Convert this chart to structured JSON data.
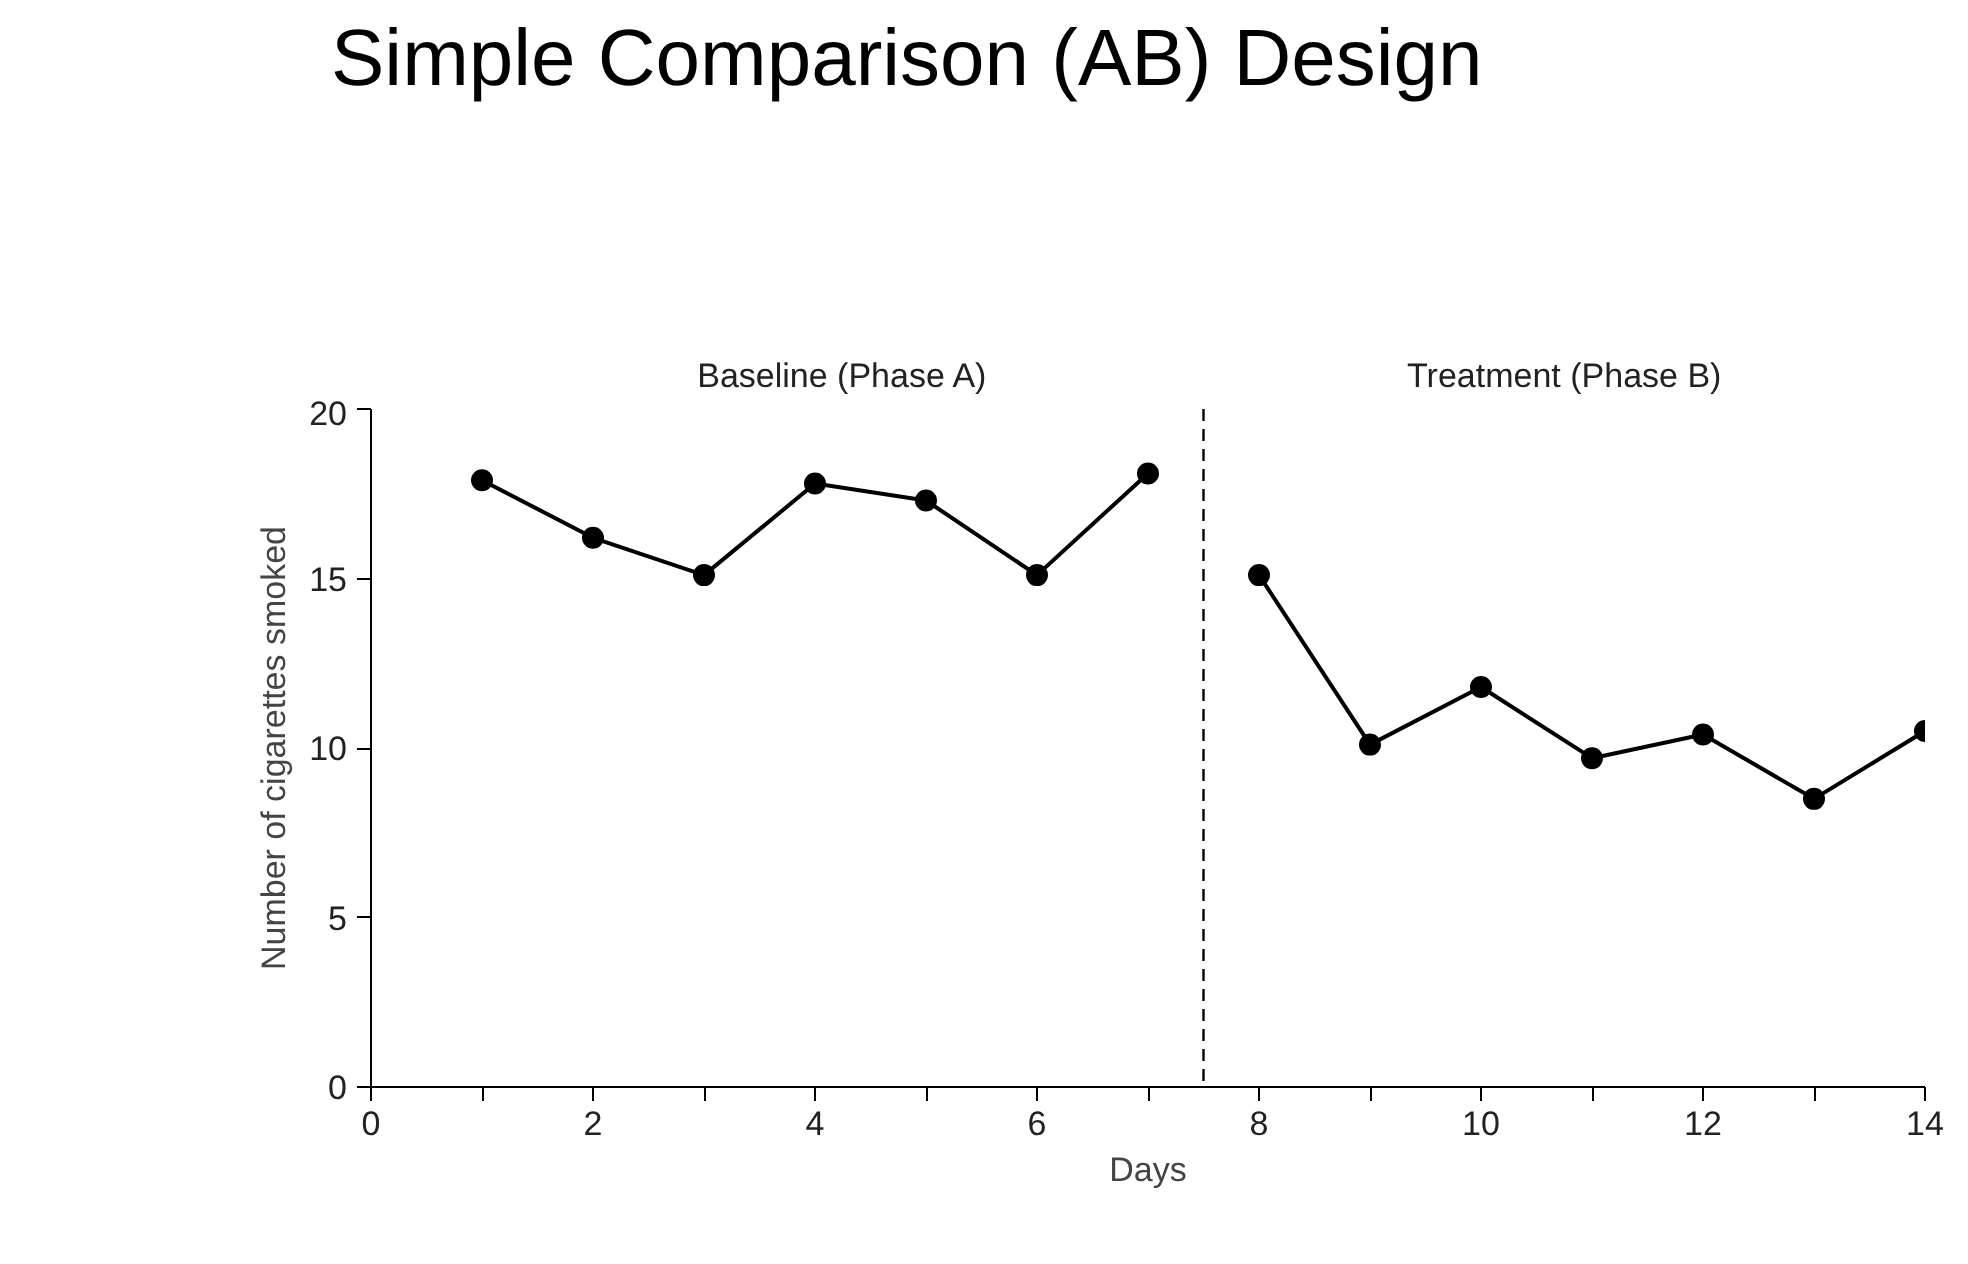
{
  "chart_data": {
    "type": "line",
    "title": "Simple Comparison (AB) Design",
    "xlabel": "Days",
    "ylabel": "Number of cigarettes smoked",
    "annotations": [
      "Baseline (Phase A)",
      "Treatment (Phase B)"
    ],
    "series": [
      {
        "color": "#000000",
        "x": [
          1,
          2,
          3,
          4,
          5,
          6,
          7
        ],
        "values": [
          17.9,
          16.2,
          15.1,
          17.8,
          17.3,
          15.1,
          18.1
        ]
      },
      {
        "color": "#000000",
        "x": [
          8,
          9,
          10,
          11,
          12,
          13,
          14
        ],
        "values": [
          15.1,
          10.1,
          11.8,
          9.7,
          10.4,
          8.5,
          10.5
        ]
      }
    ],
    "ref_lines": [
      {
        "axis": "x",
        "value": 7.5,
        "line_style": "dashed",
        "color": "#000000"
      }
    ],
    "xlim": [
      0,
      14
    ],
    "ylim": [
      0,
      20
    ],
    "xticks": [
      0,
      {
        "value": 1,
        "label": null
      },
      2,
      {
        "value": 3,
        "label": null
      },
      4,
      {
        "value": 5,
        "label": null
      },
      6,
      {
        "value": 7,
        "label": null
      },
      8,
      {
        "value": 9,
        "label": null
      },
      10,
      {
        "value": 11,
        "label": null
      },
      12,
      {
        "value": 13,
        "label": null
      },
      14
    ],
    "yticks": [
      0,
      5,
      10,
      15,
      20
    ],
    "grid": false,
    "marker": "circle",
    "line_style": "solid"
  }
}
